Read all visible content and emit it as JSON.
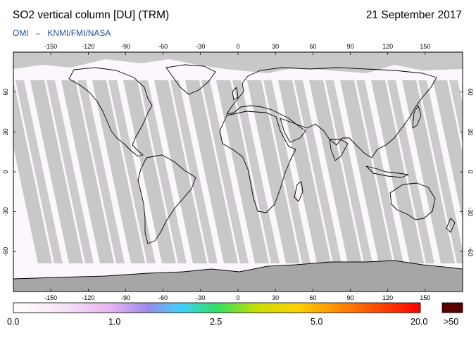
{
  "header": {
    "title": "SO2 vertical column [DU] (TRM)",
    "date": "21 September 2017",
    "instrument": "OMI",
    "separator": "–",
    "provider": "KNMI/FMI/NASA"
  },
  "map": {
    "projection": "equirectangular",
    "lon_range": [
      -180,
      180
    ],
    "lat_range": [
      -90,
      90
    ],
    "lon_ticks": [
      "-150",
      "-120",
      "-90",
      "-60",
      "-30",
      "0",
      "30",
      "60",
      "90",
      "120",
      "150"
    ],
    "lat_ticks": [
      "60",
      "30",
      "0",
      "-30",
      "-60"
    ],
    "colors": {
      "no_data": "#c8c8c8",
      "swath_overlap": "#a6a6a6",
      "low_value": "#fcf7fc",
      "coastline": "#000000"
    }
  },
  "colorbar": {
    "labels": [
      "0.0",
      "1.0",
      "2.5",
      "5.0",
      "20.0"
    ],
    "overflow_label": ">50",
    "overflow_color": "#5a0000",
    "stops": [
      "#ffffff",
      "#f6e6f6",
      "#e6b4ee",
      "#9a8ae8",
      "#40d0ff",
      "#30e060",
      "#c8e000",
      "#ffd000",
      "#ff7000",
      "#ff0000"
    ]
  }
}
